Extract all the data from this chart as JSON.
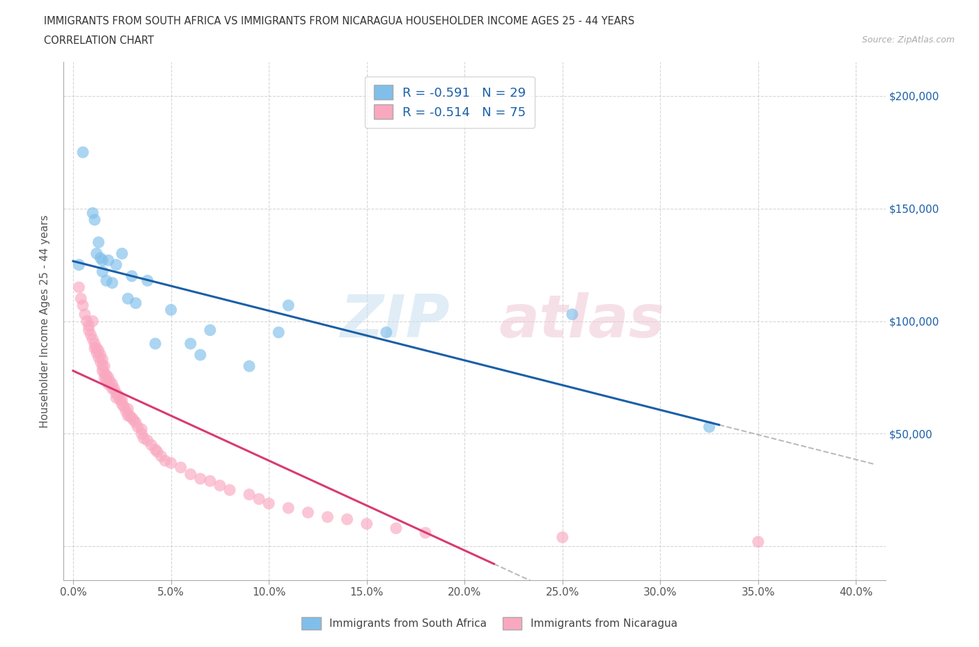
{
  "title_line1": "IMMIGRANTS FROM SOUTH AFRICA VS IMMIGRANTS FROM NICARAGUA HOUSEHOLDER INCOME AGES 25 - 44 YEARS",
  "title_line2": "CORRELATION CHART",
  "source_text": "Source: ZipAtlas.com",
  "ylabel": "Householder Income Ages 25 - 44 years",
  "xlim": [
    -0.005,
    0.415
  ],
  "ylim": [
    -15000,
    215000
  ],
  "blue_R": "-0.591",
  "blue_N": "29",
  "pink_R": "-0.514",
  "pink_N": "75",
  "blue_color": "#7fbfea",
  "pink_color": "#f9a8c0",
  "blue_line_color": "#1a5fa8",
  "pink_line_color": "#d93a72",
  "watermark_zip": "ZIP",
  "watermark_atlas": "atlas",
  "legend_label_blue": "Immigrants from South Africa",
  "legend_label_pink": "Immigrants from Nicaragua",
  "blue_points_x": [
    0.003,
    0.005,
    0.01,
    0.011,
    0.012,
    0.013,
    0.014,
    0.015,
    0.015,
    0.017,
    0.018,
    0.02,
    0.022,
    0.025,
    0.028,
    0.03,
    0.032,
    0.038,
    0.042,
    0.05,
    0.06,
    0.065,
    0.07,
    0.09,
    0.105,
    0.11,
    0.16,
    0.255,
    0.325
  ],
  "blue_points_y": [
    125000,
    175000,
    148000,
    145000,
    130000,
    135000,
    128000,
    127000,
    122000,
    118000,
    127000,
    117000,
    125000,
    130000,
    110000,
    120000,
    108000,
    118000,
    90000,
    105000,
    90000,
    85000,
    96000,
    80000,
    95000,
    107000,
    95000,
    103000,
    53000
  ],
  "pink_points_x": [
    0.003,
    0.004,
    0.005,
    0.006,
    0.007,
    0.008,
    0.008,
    0.009,
    0.01,
    0.01,
    0.011,
    0.011,
    0.012,
    0.012,
    0.013,
    0.013,
    0.014,
    0.014,
    0.015,
    0.015,
    0.015,
    0.016,
    0.016,
    0.016,
    0.017,
    0.017,
    0.018,
    0.018,
    0.019,
    0.02,
    0.02,
    0.021,
    0.022,
    0.022,
    0.023,
    0.024,
    0.025,
    0.025,
    0.026,
    0.027,
    0.028,
    0.028,
    0.029,
    0.03,
    0.031,
    0.032,
    0.033,
    0.035,
    0.035,
    0.036,
    0.038,
    0.04,
    0.042,
    0.043,
    0.045,
    0.047,
    0.05,
    0.055,
    0.06,
    0.065,
    0.07,
    0.075,
    0.08,
    0.09,
    0.095,
    0.1,
    0.11,
    0.12,
    0.13,
    0.14,
    0.15,
    0.165,
    0.18,
    0.25,
    0.35
  ],
  "pink_points_y": [
    115000,
    110000,
    107000,
    103000,
    100000,
    98000,
    96000,
    94000,
    100000,
    92000,
    90000,
    88000,
    88000,
    86000,
    87000,
    84000,
    85000,
    82000,
    83000,
    80000,
    78000,
    80000,
    77000,
    75000,
    76000,
    74000,
    75000,
    72000,
    73000,
    72000,
    70000,
    70000,
    68000,
    66000,
    67000,
    65000,
    65000,
    63000,
    62000,
    60000,
    61000,
    58000,
    58000,
    57000,
    56000,
    55000,
    53000,
    52000,
    50000,
    48000,
    47000,
    45000,
    43000,
    42000,
    40000,
    38000,
    37000,
    35000,
    32000,
    30000,
    29000,
    27000,
    25000,
    23000,
    21000,
    19000,
    17000,
    15000,
    13000,
    12000,
    10000,
    8000,
    6000,
    4000,
    2000
  ],
  "x_tick_positions": [
    0.0,
    0.05,
    0.1,
    0.15,
    0.2,
    0.25,
    0.3,
    0.35,
    0.4
  ],
  "x_tick_labels": [
    "0.0%",
    "5.0%",
    "10.0%",
    "15.0%",
    "20.0%",
    "25.0%",
    "30.0%",
    "35.0%",
    "40.0%"
  ],
  "y_tick_positions": [
    0,
    50000,
    100000,
    150000,
    200000
  ],
  "y_tick_labels_left": [
    "",
    "",
    "",
    "",
    ""
  ],
  "y_tick_labels_right": [
    "",
    "$50,000",
    "$100,000",
    "$150,000",
    "$200,000"
  ],
  "grid_color": "#cccccc",
  "axis_color": "#999999"
}
